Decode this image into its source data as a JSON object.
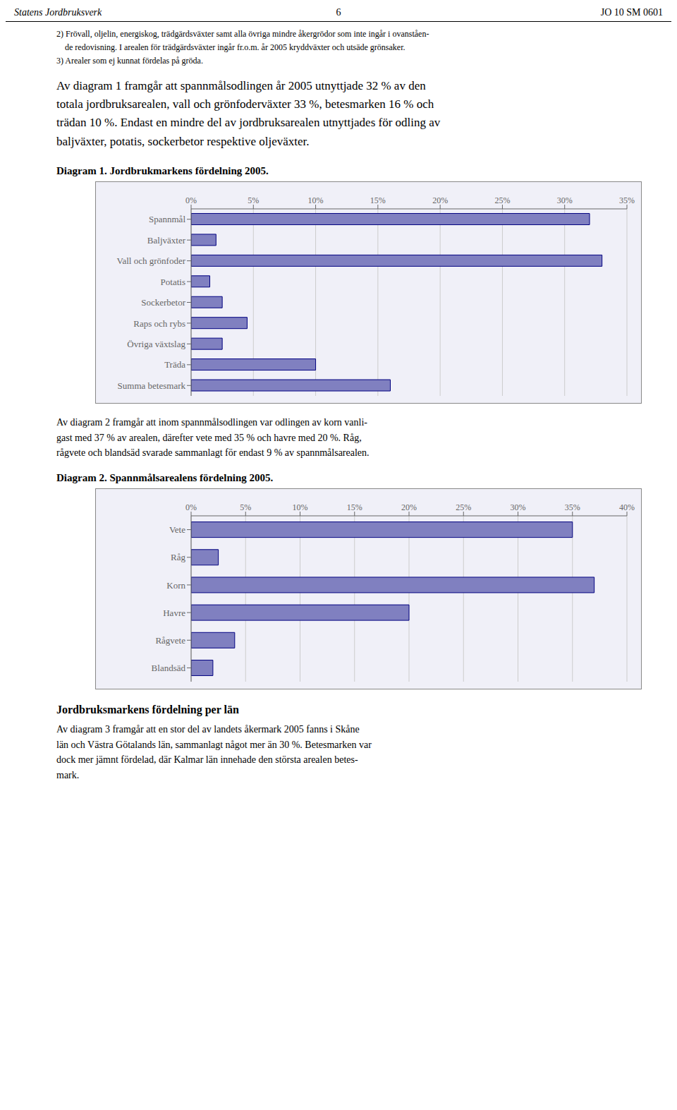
{
  "annotations": [
    "Statens Jordbruksverk",
    "6",
    "JO 10 SM 0601",
    "2) Frövall, oljelin, energiskog, trädgärdsväxter samt alla övriga mindre åkergrödor som inte ingår i ovanståen-",
    "    de redovisning. I arealen för trädgärdsväxter ingår fr.o.m. år 2005 kryddväxter och utsäde grönsaker.",
    "3) Arealer som ej kunnat fördelas på gröda.",
    "Av diagram 1 framgår att spannmålsodlingen år 2005 utnyttjade 32 % av den",
    "totala jordbruksarealen, vall och grönfoderväxter 33 %, betesmarken 16 % och",
    "trädan 10 %. Endast en mindre del av jordbruksarealen utnyttjades för odling av",
    "baljväxter, potatis, sockerbetor respektive oljeväxter.",
    "Av diagram 2 framgår att inom spannmålsodlingen var odlingen av korn vanli-",
    "gast med 37 % av arealen, därefter vete med 35 % och havre med 20 %. Råg,",
    "rågvete och blandsäd svarade sammanlagt för endast 9 % av spannmålsarealen.",
    "Jordbruksmarkens fördelning per län",
    "Av diagram 3 framgår att en stor del av landets åkermark 2005 fanns i Skåne",
    "län och Västra Götalands län, sammanlagt något mer än 30 %. Betesmarken var",
    "dock mer jämnt fördelad, där Kalmar län innehade den största arealen betes-",
    "mark."
  ],
  "chart_data": [
    {
      "type": "bar",
      "title": "Diagram 1. Jordbrukmarkens fördelning 2005.",
      "orientation": "horizontal",
      "categories": [
        "Spannmål",
        "Baljväxter",
        "Vall och grönfoder",
        "Potatis",
        "Sockerbetor",
        "Raps och rybs",
        "Övriga växtslag",
        "Träda",
        "Summa betesmark"
      ],
      "values": [
        32,
        2,
        33,
        1.5,
        2.5,
        4.5,
        2.5,
        10,
        16
      ],
      "color": "#8080C0",
      "xlim": [
        0,
        35
      ],
      "xticks": [
        {
          "value": 0,
          "label": "0%"
        },
        {
          "value": 5,
          "label": "5%"
        },
        {
          "value": 10,
          "label": "10%"
        },
        {
          "value": 15,
          "label": "15%"
        },
        {
          "value": 20,
          "label": "20%"
        },
        {
          "value": 25,
          "label": "25%"
        },
        {
          "value": 30,
          "label": "30%"
        },
        {
          "value": 35,
          "label": "35%"
        }
      ],
      "grid": true
    },
    {
      "type": "bar",
      "title": "Diagram 2. Spannmålsarealens fördelning 2005.",
      "orientation": "horizontal",
      "categories": [
        "Vete",
        "Råg",
        "Korn",
        "Havre",
        "Rågvete",
        "Blandsäd"
      ],
      "values": [
        35,
        2.5,
        37,
        20,
        4,
        2
      ],
      "color": "#8080C0",
      "xlim": [
        0,
        40
      ],
      "xticks": [
        {
          "value": 0,
          "label": "0%"
        },
        {
          "value": 5,
          "label": "5%"
        },
        {
          "value": 10,
          "label": "10%"
        },
        {
          "value": 15,
          "label": "15%"
        },
        {
          "value": 20,
          "label": "20%"
        },
        {
          "value": 25,
          "label": "25%"
        },
        {
          "value": 30,
          "label": "30%"
        },
        {
          "value": 35,
          "label": "35%"
        },
        {
          "value": 40,
          "label": "40%"
        }
      ],
      "grid": true
    }
  ]
}
